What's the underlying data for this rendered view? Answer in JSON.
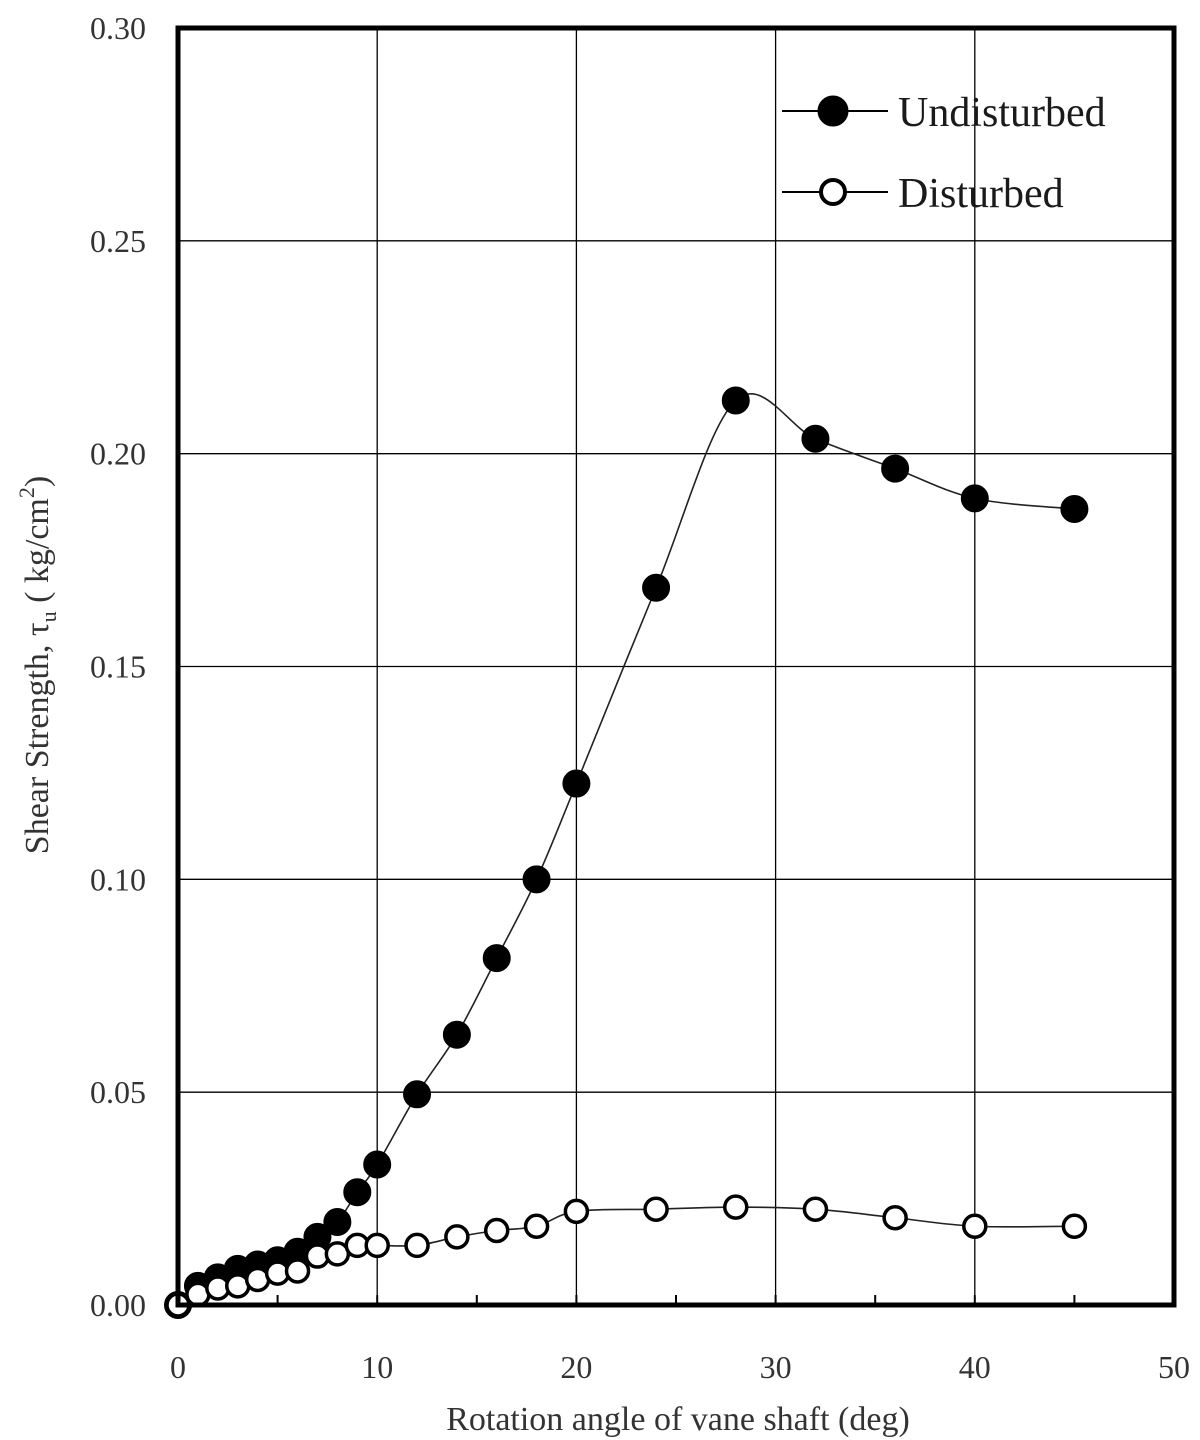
{
  "chart_data": {
    "type": "line",
    "title": "",
    "xlabel": "Rotation angle of vane shaft (deg)",
    "ylabel_main": "Shear Strength, τ",
    "ylabel_sub": "u",
    "ylabel_unit": " ( kg/cm",
    "ylabel_sup": "2",
    "ylabel_close": ")",
    "xlim": [
      0,
      50
    ],
    "ylim": [
      0,
      0.3
    ],
    "xticks": [
      0,
      10,
      20,
      30,
      40,
      50
    ],
    "xtick_labels": [
      "0",
      "10",
      "20",
      "30",
      "40",
      "50"
    ],
    "yticks": [
      0,
      0.05,
      0.1,
      0.15,
      0.2,
      0.25,
      0.3
    ],
    "ytick_labels": [
      "0.00",
      "0.05",
      "0.10",
      "0.15",
      "0.20",
      "0.25",
      "0.30"
    ],
    "grid": true,
    "legend_position": "top-right",
    "series": [
      {
        "name": "Undisturbed",
        "marker": "filled-circle",
        "color": "#000000",
        "x": [
          0,
          1,
          2,
          3,
          4,
          5,
          6,
          7,
          8,
          9,
          10,
          12,
          14,
          16,
          18,
          20,
          24,
          28,
          32,
          36,
          40,
          45
        ],
        "y": [
          0.0,
          0.0045,
          0.0065,
          0.0085,
          0.0095,
          0.0105,
          0.0125,
          0.016,
          0.0195,
          0.0265,
          0.033,
          0.0495,
          0.0635,
          0.0815,
          0.1,
          0.1225,
          0.1685,
          0.2125,
          0.2035,
          0.1965,
          0.1895,
          0.187
        ]
      },
      {
        "name": "Disturbed",
        "marker": "open-circle",
        "color": "#000000",
        "x": [
          0,
          1,
          2,
          3,
          4,
          5,
          6,
          7,
          8,
          9,
          10,
          12,
          14,
          16,
          18,
          20,
          24,
          28,
          32,
          36,
          40,
          45
        ],
        "y": [
          0.0,
          0.0025,
          0.004,
          0.0045,
          0.006,
          0.0075,
          0.008,
          0.0115,
          0.012,
          0.014,
          0.014,
          0.014,
          0.016,
          0.0175,
          0.0185,
          0.022,
          0.0225,
          0.023,
          0.0225,
          0.0205,
          0.0185,
          0.0185
        ]
      }
    ]
  }
}
